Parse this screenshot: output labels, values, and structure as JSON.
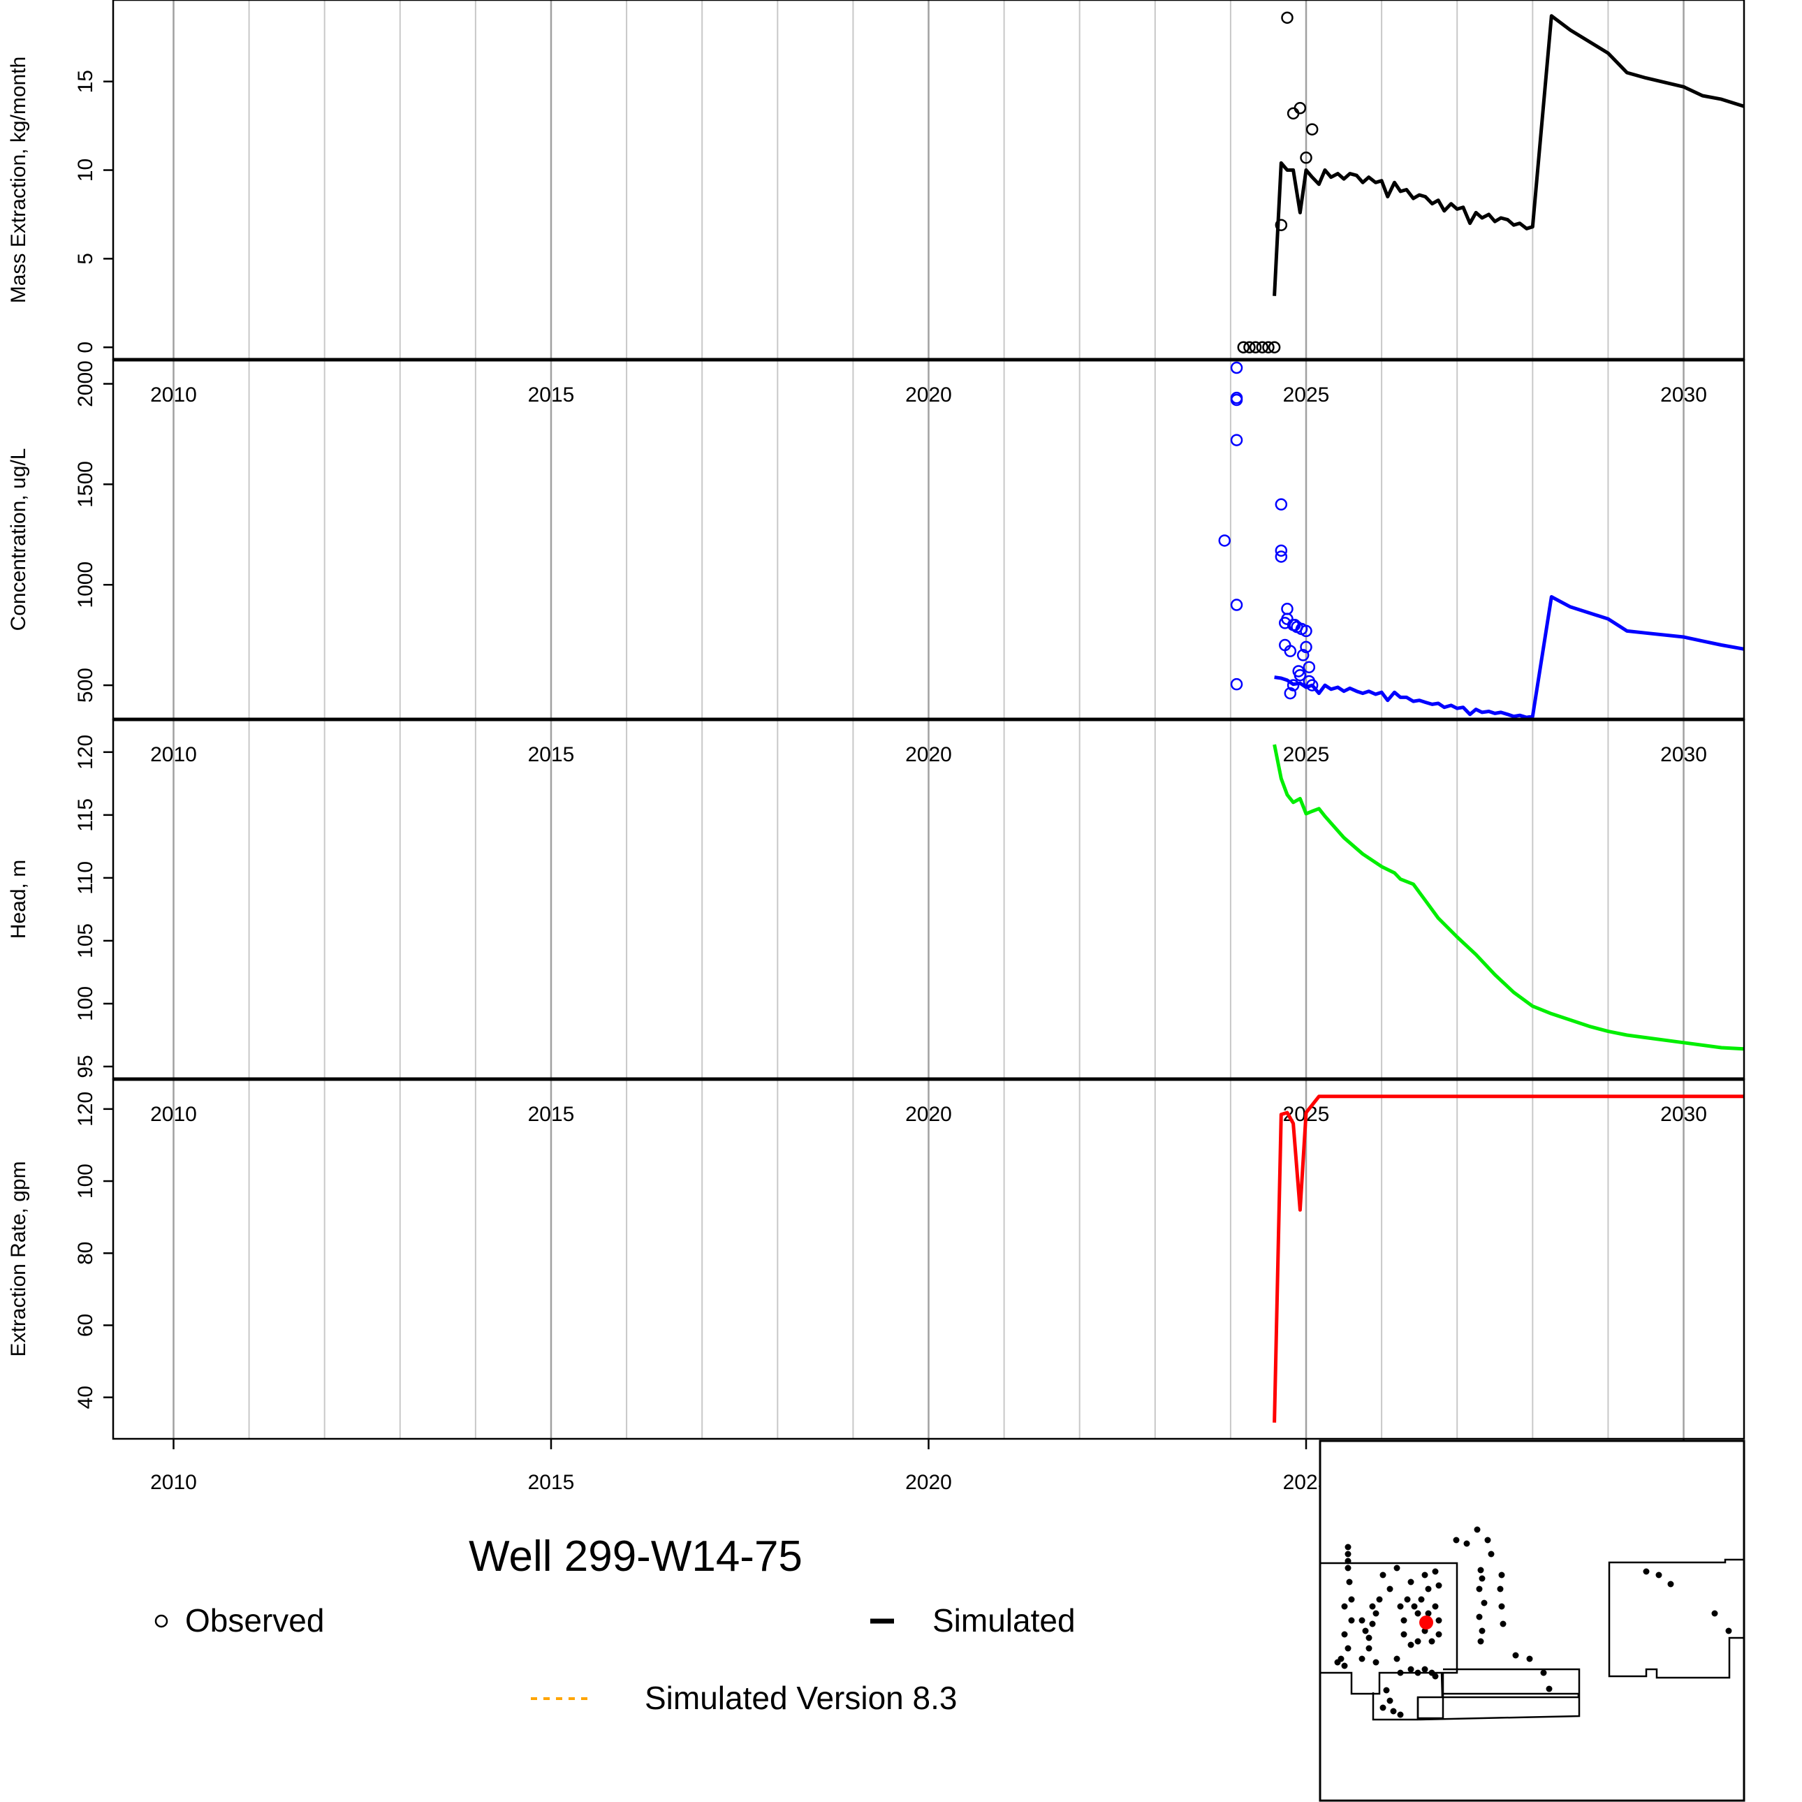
{
  "title": "Well 299-W14-75",
  "legend": {
    "observed": "Observed",
    "simulated": "Simulated",
    "simulated_v83": "Simulated Version 8.3",
    "simulated_v83_color": "#ffa500"
  },
  "x_tick_labels": [
    "2010",
    "2015",
    "2020",
    "2025",
    "2030"
  ],
  "chart_data": [
    {
      "type": "line",
      "panel": "mass",
      "ylabel": "Mass Extraction, kg/month",
      "xlim": [
        2009.2,
        2030.8
      ],
      "ylim": [
        -0.7,
        19.6
      ],
      "yticks": [
        0,
        5,
        10,
        15
      ],
      "color": "#000000",
      "series": [
        {
          "kind": "observed",
          "x": [
            2024.17,
            2024.25,
            2024.33,
            2024.42,
            2024.5,
            2024.58,
            2024.67,
            2024.75,
            2024.83,
            2024.92,
            2025.0,
            2025.08
          ],
          "y": [
            0,
            0,
            0,
            0,
            0,
            0,
            6.9,
            18.6,
            13.2,
            13.5,
            10.7,
            12.3
          ]
        },
        {
          "kind": "simulated",
          "x": [
            2024.58,
            2024.67,
            2024.75,
            2024.83,
            2024.92,
            2025.0,
            2025.08,
            2025.17,
            2025.25,
            2025.33,
            2025.42,
            2025.5,
            2025.58,
            2025.67,
            2025.75,
            2025.83,
            2025.92,
            2026.0,
            2026.08,
            2026.17,
            2026.25,
            2026.33,
            2026.42,
            2026.5,
            2026.58,
            2026.67,
            2026.75,
            2026.83,
            2026.92,
            2027.0,
            2027.08,
            2027.17,
            2027.25,
            2027.33,
            2027.42,
            2027.5,
            2027.58,
            2027.67,
            2027.75,
            2027.83,
            2027.92,
            2028.0,
            2028.25,
            2028.5,
            2029.0,
            2029.25,
            2029.5,
            2030.0,
            2030.25,
            2030.5,
            2030.8
          ],
          "y": [
            2.9,
            10.4,
            10.0,
            10.0,
            7.6,
            10.0,
            9.6,
            9.2,
            10.0,
            9.6,
            9.8,
            9.5,
            9.8,
            9.7,
            9.3,
            9.6,
            9.3,
            9.4,
            8.5,
            9.3,
            8.8,
            8.9,
            8.4,
            8.6,
            8.5,
            8.1,
            8.3,
            7.7,
            8.1,
            7.8,
            7.9,
            7.0,
            7.6,
            7.3,
            7.5,
            7.1,
            7.3,
            7.2,
            6.9,
            7.0,
            6.7,
            6.8,
            18.7,
            17.9,
            16.6,
            15.5,
            15.2,
            14.7,
            14.2,
            14.0,
            13.6
          ]
        }
      ]
    },
    {
      "type": "line",
      "panel": "concentration",
      "ylabel": "Concentration, ug/L",
      "xlim": [
        2009.2,
        2030.8
      ],
      "ylim": [
        330,
        2120
      ],
      "yticks": [
        500,
        1000,
        1500,
        2000
      ],
      "color": "#0000ff",
      "series": [
        {
          "kind": "observed",
          "x": [
            2023.92,
            2024.08,
            2024.08,
            2024.08,
            2024.08,
            2024.08,
            2024.08,
            2024.67,
            2024.67,
            2024.67,
            2024.72,
            2024.72,
            2024.75,
            2024.75,
            2024.79,
            2024.79,
            2024.83,
            2024.83,
            2024.85,
            2024.88,
            2024.9,
            2024.92,
            2024.94,
            2024.96,
            2025.0,
            2025.0,
            2025.04,
            2025.04,
            2025.08
          ],
          "y": [
            1220,
            2080,
            1930,
            1920,
            1720,
            900,
            505,
            1400,
            1170,
            1140,
            810,
            700,
            830,
            880,
            460,
            670,
            800,
            500,
            800,
            790,
            570,
            550,
            780,
            650,
            770,
            690,
            590,
            520,
            500
          ]
        },
        {
          "kind": "simulated",
          "x": [
            2024.58,
            2024.67,
            2024.75,
            2024.83,
            2024.92,
            2025.0,
            2025.08,
            2025.17,
            2025.25,
            2025.33,
            2025.42,
            2025.5,
            2025.58,
            2025.67,
            2025.75,
            2025.83,
            2025.92,
            2026.0,
            2026.08,
            2026.17,
            2026.25,
            2026.33,
            2026.42,
            2026.5,
            2026.58,
            2026.67,
            2026.75,
            2026.83,
            2026.92,
            2027.0,
            2027.08,
            2027.17,
            2027.25,
            2027.33,
            2027.42,
            2027.5,
            2027.58,
            2027.67,
            2027.75,
            2027.83,
            2027.92,
            2028.0,
            2028.25,
            2028.5,
            2029.0,
            2029.25,
            2029.5,
            2030.0,
            2030.25,
            2030.5,
            2030.8
          ],
          "y": [
            540,
            535,
            525,
            505,
            510,
            490,
            500,
            460,
            500,
            480,
            490,
            470,
            485,
            470,
            460,
            470,
            455,
            465,
            425,
            465,
            440,
            440,
            420,
            425,
            415,
            405,
            410,
            390,
            400,
            385,
            390,
            355,
            380,
            365,
            370,
            360,
            365,
            355,
            345,
            350,
            340,
            345,
            940,
            890,
            830,
            770,
            760,
            740,
            720,
            700,
            680
          ]
        }
      ]
    },
    {
      "type": "line",
      "panel": "head",
      "ylabel": "Head, m",
      "xlim": [
        2009.2,
        2030.8
      ],
      "ylim": [
        94.0,
        122.6
      ],
      "yticks": [
        95,
        100,
        105,
        110,
        115,
        120
      ],
      "color": "#00ee00",
      "series": [
        {
          "kind": "simulated",
          "x": [
            2024.58,
            2024.67,
            2024.75,
            2024.83,
            2024.92,
            2025.0,
            2025.08,
            2025.17,
            2025.25,
            2025.5,
            2025.75,
            2026.0,
            2026.17,
            2026.25,
            2026.42,
            2026.58,
            2026.75,
            2027.0,
            2027.25,
            2027.5,
            2027.75,
            2028.0,
            2028.25,
            2028.5,
            2028.75,
            2029.0,
            2029.25,
            2029.5,
            2030.0,
            2030.5,
            2030.8
          ],
          "y": [
            120.6,
            117.9,
            116.6,
            116.0,
            116.3,
            115.1,
            115.3,
            115.5,
            114.9,
            113.2,
            111.9,
            110.9,
            110.4,
            109.9,
            109.5,
            108.2,
            106.8,
            105.3,
            103.9,
            102.3,
            100.9,
            99.8,
            99.2,
            98.7,
            98.2,
            97.8,
            97.5,
            97.3,
            96.9,
            96.5,
            96.4
          ]
        }
      ]
    },
    {
      "type": "line",
      "panel": "rate",
      "ylabel": "Extraction Rate, gpm",
      "xlim": [
        2009.2,
        2030.8
      ],
      "ylim": [
        28.5,
        128.3
      ],
      "yticks": [
        40,
        60,
        80,
        100,
        120
      ],
      "color": "#ff0000",
      "series": [
        {
          "kind": "simulated",
          "x": [
            2024.58,
            2024.67,
            2024.75,
            2024.83,
            2024.92,
            2025.0,
            2025.17,
            2025.25,
            2025.5,
            2026.0,
            2027.0,
            2028.0,
            2029.0,
            2030.0,
            2030.8
          ],
          "y": [
            33,
            118.5,
            119.0,
            116,
            92,
            119.0,
            123.5,
            123.5,
            123.5,
            123.5,
            123.5,
            123.5,
            123.5,
            123.5,
            123.5
          ]
        }
      ]
    }
  ]
}
